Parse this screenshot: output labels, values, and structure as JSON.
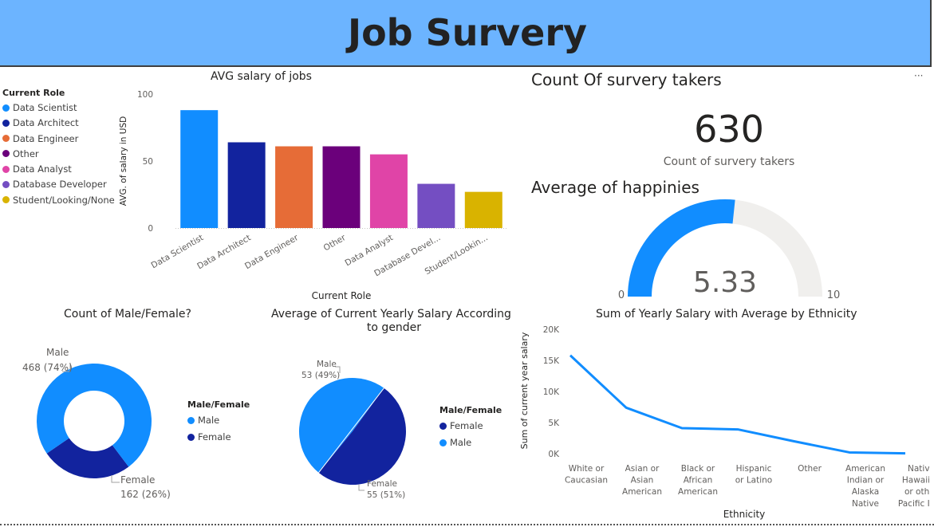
{
  "header": {
    "title": "Job Survery"
  },
  "role_legend": {
    "title": "Current Role",
    "items": [
      {
        "label": "Data Scientist",
        "color": "#118dff"
      },
      {
        "label": "Data Architect",
        "color": "#12239e"
      },
      {
        "label": "Data Engineer",
        "color": "#e66c37"
      },
      {
        "label": "Other",
        "color": "#6b007b"
      },
      {
        "label": "Data Analyst",
        "color": "#e044a7"
      },
      {
        "label": "Database Developer",
        "color": "#744ec2"
      },
      {
        "label": "Student/Looking/None",
        "color": "#d9b300"
      }
    ]
  },
  "more_options": "···",
  "kpi": {
    "title": "Count Of survery takers",
    "value": "630",
    "caption": "Count of survery takers"
  },
  "gauge": {
    "title": "Average of happinies",
    "value_label": "5.33",
    "min_label": "0",
    "max_label": "10",
    "value": 5.33,
    "min": 0,
    "max": 10,
    "fill_color": "#118dff",
    "track_color": "#f0efed"
  },
  "gender_donut": {
    "title": "Count of Male/Female?",
    "legend_title": "Male/Female",
    "legend": [
      {
        "label": "Male",
        "color": "#118dff"
      },
      {
        "label": "Female",
        "color": "#12239e"
      }
    ],
    "labels": {
      "male_name": "Male",
      "male_value": "468 (74%)",
      "female_name": "Female",
      "female_value": "162 (26%)"
    }
  },
  "salary_pie": {
    "title_line1": "Average of Current Yearly Salary According",
    "title_line2": "to gender",
    "legend_title": "Male/Female",
    "legend": [
      {
        "label": "Female",
        "color": "#12239e"
      },
      {
        "label": "Male",
        "color": "#118dff"
      }
    ],
    "labels": {
      "male_name": "Male",
      "male_value": "53 (49%)",
      "female_name": "Female",
      "female_value": "55 (51%)"
    }
  },
  "chart_data": [
    {
      "type": "bar",
      "title": "AVG salary of jobs",
      "xlabel": "Current Role",
      "ylabel": "AVG. of salary in USD",
      "ylim": [
        0,
        100
      ],
      "yticks": [
        "0",
        "50",
        "100"
      ],
      "categories": [
        "Data Scientist",
        "Data Architect",
        "Data Engineer",
        "Other",
        "Data Analyst",
        "Database Devel...",
        "Student/Lookin..."
      ],
      "values": [
        88,
        64,
        61,
        61,
        55,
        33,
        27
      ],
      "colors": [
        "#118dff",
        "#12239e",
        "#e66c37",
        "#6b007b",
        "#e044a7",
        "#744ec2",
        "#d9b300"
      ]
    },
    {
      "type": "pie",
      "title": "Count of Male/Female?",
      "categories": [
        "Male",
        "Female"
      ],
      "values": [
        468,
        162
      ],
      "colors": [
        "#118dff",
        "#12239e"
      ]
    },
    {
      "type": "pie",
      "title": "Average of Current Yearly Salary According to gender",
      "categories": [
        "Male",
        "Female"
      ],
      "values": [
        53,
        55
      ],
      "colors": [
        "#118dff",
        "#12239e"
      ]
    },
    {
      "type": "line",
      "title": "Sum of Yearly Salary with Average by Ethnicity",
      "xlabel": "Ethnicity",
      "ylabel": "Sum of current year salary",
      "ylim": [
        0,
        20000
      ],
      "yticks": [
        "0K",
        "5K",
        "10K",
        "15K",
        "20K"
      ],
      "categories": [
        [
          "White or",
          "Caucasian"
        ],
        [
          "Asian or",
          "Asian",
          "American"
        ],
        [
          "Black or",
          "African",
          "American"
        ],
        [
          "Hispanic",
          "or Latino"
        ],
        [
          "Other"
        ],
        [
          "American",
          "Indian or",
          "Alaska",
          "Native"
        ],
        [
          "Native",
          "Hawaiian",
          "or other",
          "Pacific Isl..."
        ]
      ],
      "values": [
        15800,
        7400,
        4100,
        3900,
        2000,
        200,
        50
      ],
      "color": "#118dff"
    }
  ]
}
